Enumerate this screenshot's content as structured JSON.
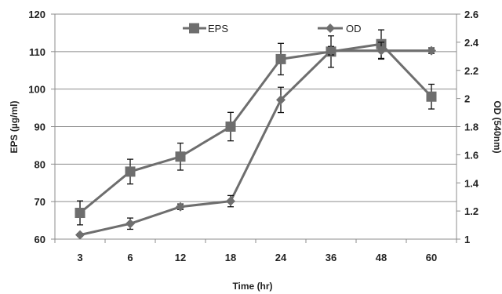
{
  "chart_data": {
    "type": "line",
    "categories": [
      "3",
      "6",
      "12",
      "18",
      "24",
      "36",
      "48",
      "60"
    ],
    "xlabel": "Time (hr)",
    "ylabel": "EPS (µg/ml)",
    "y2label": "OD (540nm)",
    "ylim": [
      60,
      120
    ],
    "y_ticks": [
      60,
      70,
      80,
      90,
      100,
      110,
      120
    ],
    "y2lim": [
      1,
      2.6
    ],
    "y2_ticks": [
      "1",
      "1.2",
      "1.4",
      "1.6",
      "1.8",
      "2",
      "2.2",
      "2.4",
      "2.6"
    ],
    "grid": true,
    "legend_position": "top-center",
    "series": [
      {
        "name": "EPS",
        "axis": "left",
        "marker": "square",
        "color": "#6e6e6e",
        "values": [
          67,
          78,
          82,
          90,
          108,
          110,
          112,
          98
        ],
        "error": [
          3.2,
          3.3,
          3.6,
          3.8,
          4.2,
          4.2,
          3.8,
          3.3
        ]
      },
      {
        "name": "OD",
        "axis": "right",
        "marker": "diamond",
        "color": "#6e6e6e",
        "values": [
          1.03,
          1.11,
          1.23,
          1.27,
          1.99,
          2.34,
          2.34,
          2.34
        ],
        "error": [
          0.01,
          0.04,
          0.02,
          0.04,
          0.09,
          0.03,
          0.06,
          0.02
        ]
      }
    ]
  }
}
